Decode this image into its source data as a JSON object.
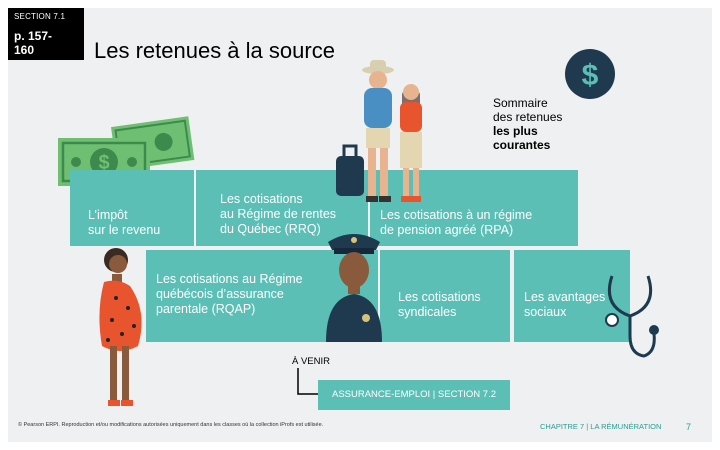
{
  "header": {
    "section_tag": "SECTION 7.1",
    "page_ref_line1": "p. 157-",
    "page_ref_line2": "160",
    "title": "Les retenues à la source"
  },
  "summary": {
    "line1": "Sommaire",
    "line2": "des retenues",
    "line3": "les plus",
    "line4": "courantes"
  },
  "tiles": {
    "impot": [
      "L’impôt",
      "sur le revenu"
    ],
    "rrq": [
      "Les cotisations",
      "au Régime de rentes",
      "du Québec (RRQ)"
    ],
    "rpa": [
      "Les cotisations à un régime",
      "de pension agréé (RPA)"
    ],
    "rqap": [
      "Les cotisations au Régime",
      "québécois d’assurance",
      "parentale (RQAP)"
    ],
    "syndicales": [
      "Les cotisations",
      "syndicales"
    ],
    "avantages": [
      "Les avantages",
      "sociaux"
    ]
  },
  "coming": {
    "label": "À VENIR",
    "next_link": "ASSURANCE-EMPLOI | SECTION 7.2"
  },
  "footer": {
    "copyright": "© Pearson ERPI. Reproduction et/ou modifications autorisées uniquement dans les classes où la collection iProfs est utilisée.",
    "chapter": "CHAPITRE 7 | LA RÉMUNÉRATION",
    "page_number": "7"
  },
  "icons": {
    "dollar_badge": "$",
    "bill_symbol": "$"
  },
  "colors": {
    "teal": "#5bbfb5",
    "navy": "#1f3a4f",
    "money_green": "#6fbf73"
  }
}
